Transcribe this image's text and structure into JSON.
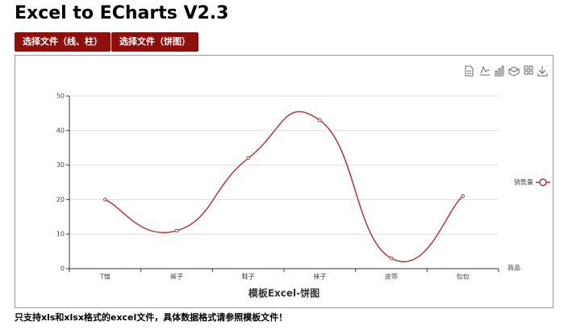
{
  "header": {
    "title": "Excel to ECharts V2.3"
  },
  "buttons": [
    "选择文件（线、柱）",
    "选择文件（饼图）"
  ],
  "chart_data": {
    "type": "line",
    "title": "模板Excel-饼图",
    "x_label": "商品",
    "categories": [
      "T恤",
      "裤子",
      "鞋子",
      "袜子",
      "皮带",
      "包包"
    ],
    "series": [
      {
        "name": "销售量",
        "color": "#b23a33",
        "values": [
          20,
          11,
          32,
          43,
          3,
          21
        ]
      }
    ],
    "ylim": [
      0,
      50
    ],
    "yticks": [
      0,
      10,
      20,
      30,
      40,
      50
    ],
    "grid": true,
    "smooth": true,
    "legend": "right"
  },
  "footer": {
    "note": "只支持xls和xlsx格式的excel文件，具体数据格式请参照模板文件！"
  }
}
